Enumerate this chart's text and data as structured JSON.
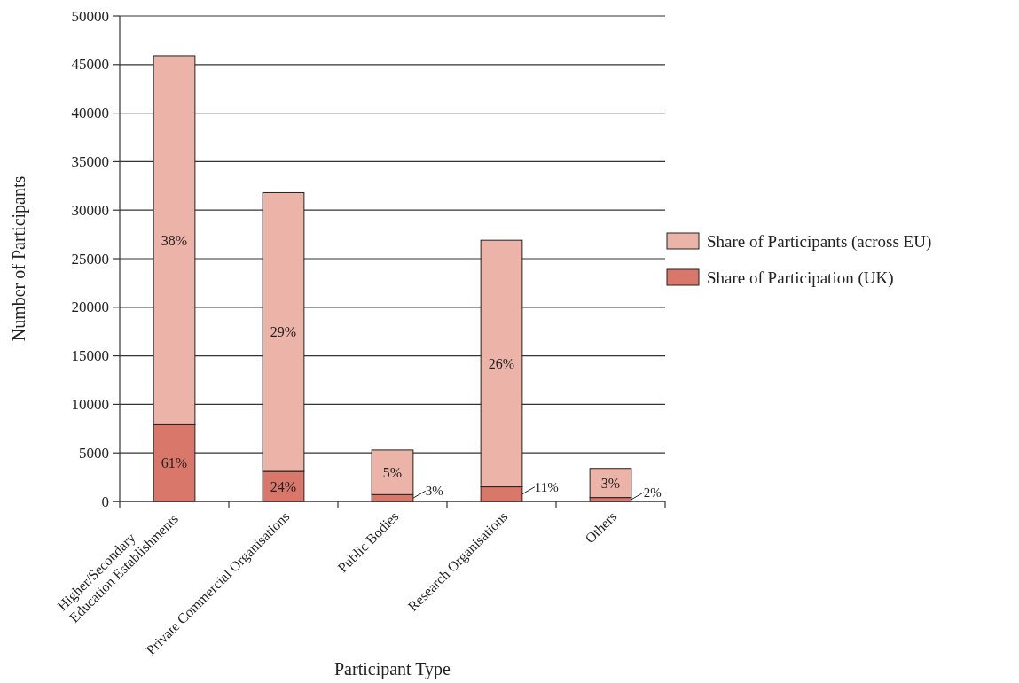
{
  "chart_data": {
    "type": "bar",
    "stacked": true,
    "xlabel": "Participant Type",
    "ylabel": "Number of Participants",
    "categories": [
      "Higher/Secondary Education Establishments",
      "Private Commercial Organisations",
      "Public Bodies",
      "Research Organisations",
      "Others"
    ],
    "series": [
      {
        "name": "Share of Participation (UK)",
        "color": "#d9776b",
        "values": [
          7900,
          3100,
          700,
          1500,
          400
        ]
      },
      {
        "name": "Share of Participants (across EU)",
        "color": "#ecb4a9",
        "values": [
          38000,
          28700,
          4600,
          25400,
          3000
        ]
      }
    ],
    "annotations": [
      "61%",
      "24%",
      "3%",
      "11%",
      "2%",
      "38%",
      "29%",
      "5%",
      "26%",
      "3%"
    ],
    "ylim": [
      0,
      50000
    ],
    "yticks": [
      0,
      5000,
      10000,
      15000,
      20000,
      25000,
      30000,
      35000,
      40000,
      45000,
      50000
    ],
    "grid": "y",
    "legend": "right"
  }
}
